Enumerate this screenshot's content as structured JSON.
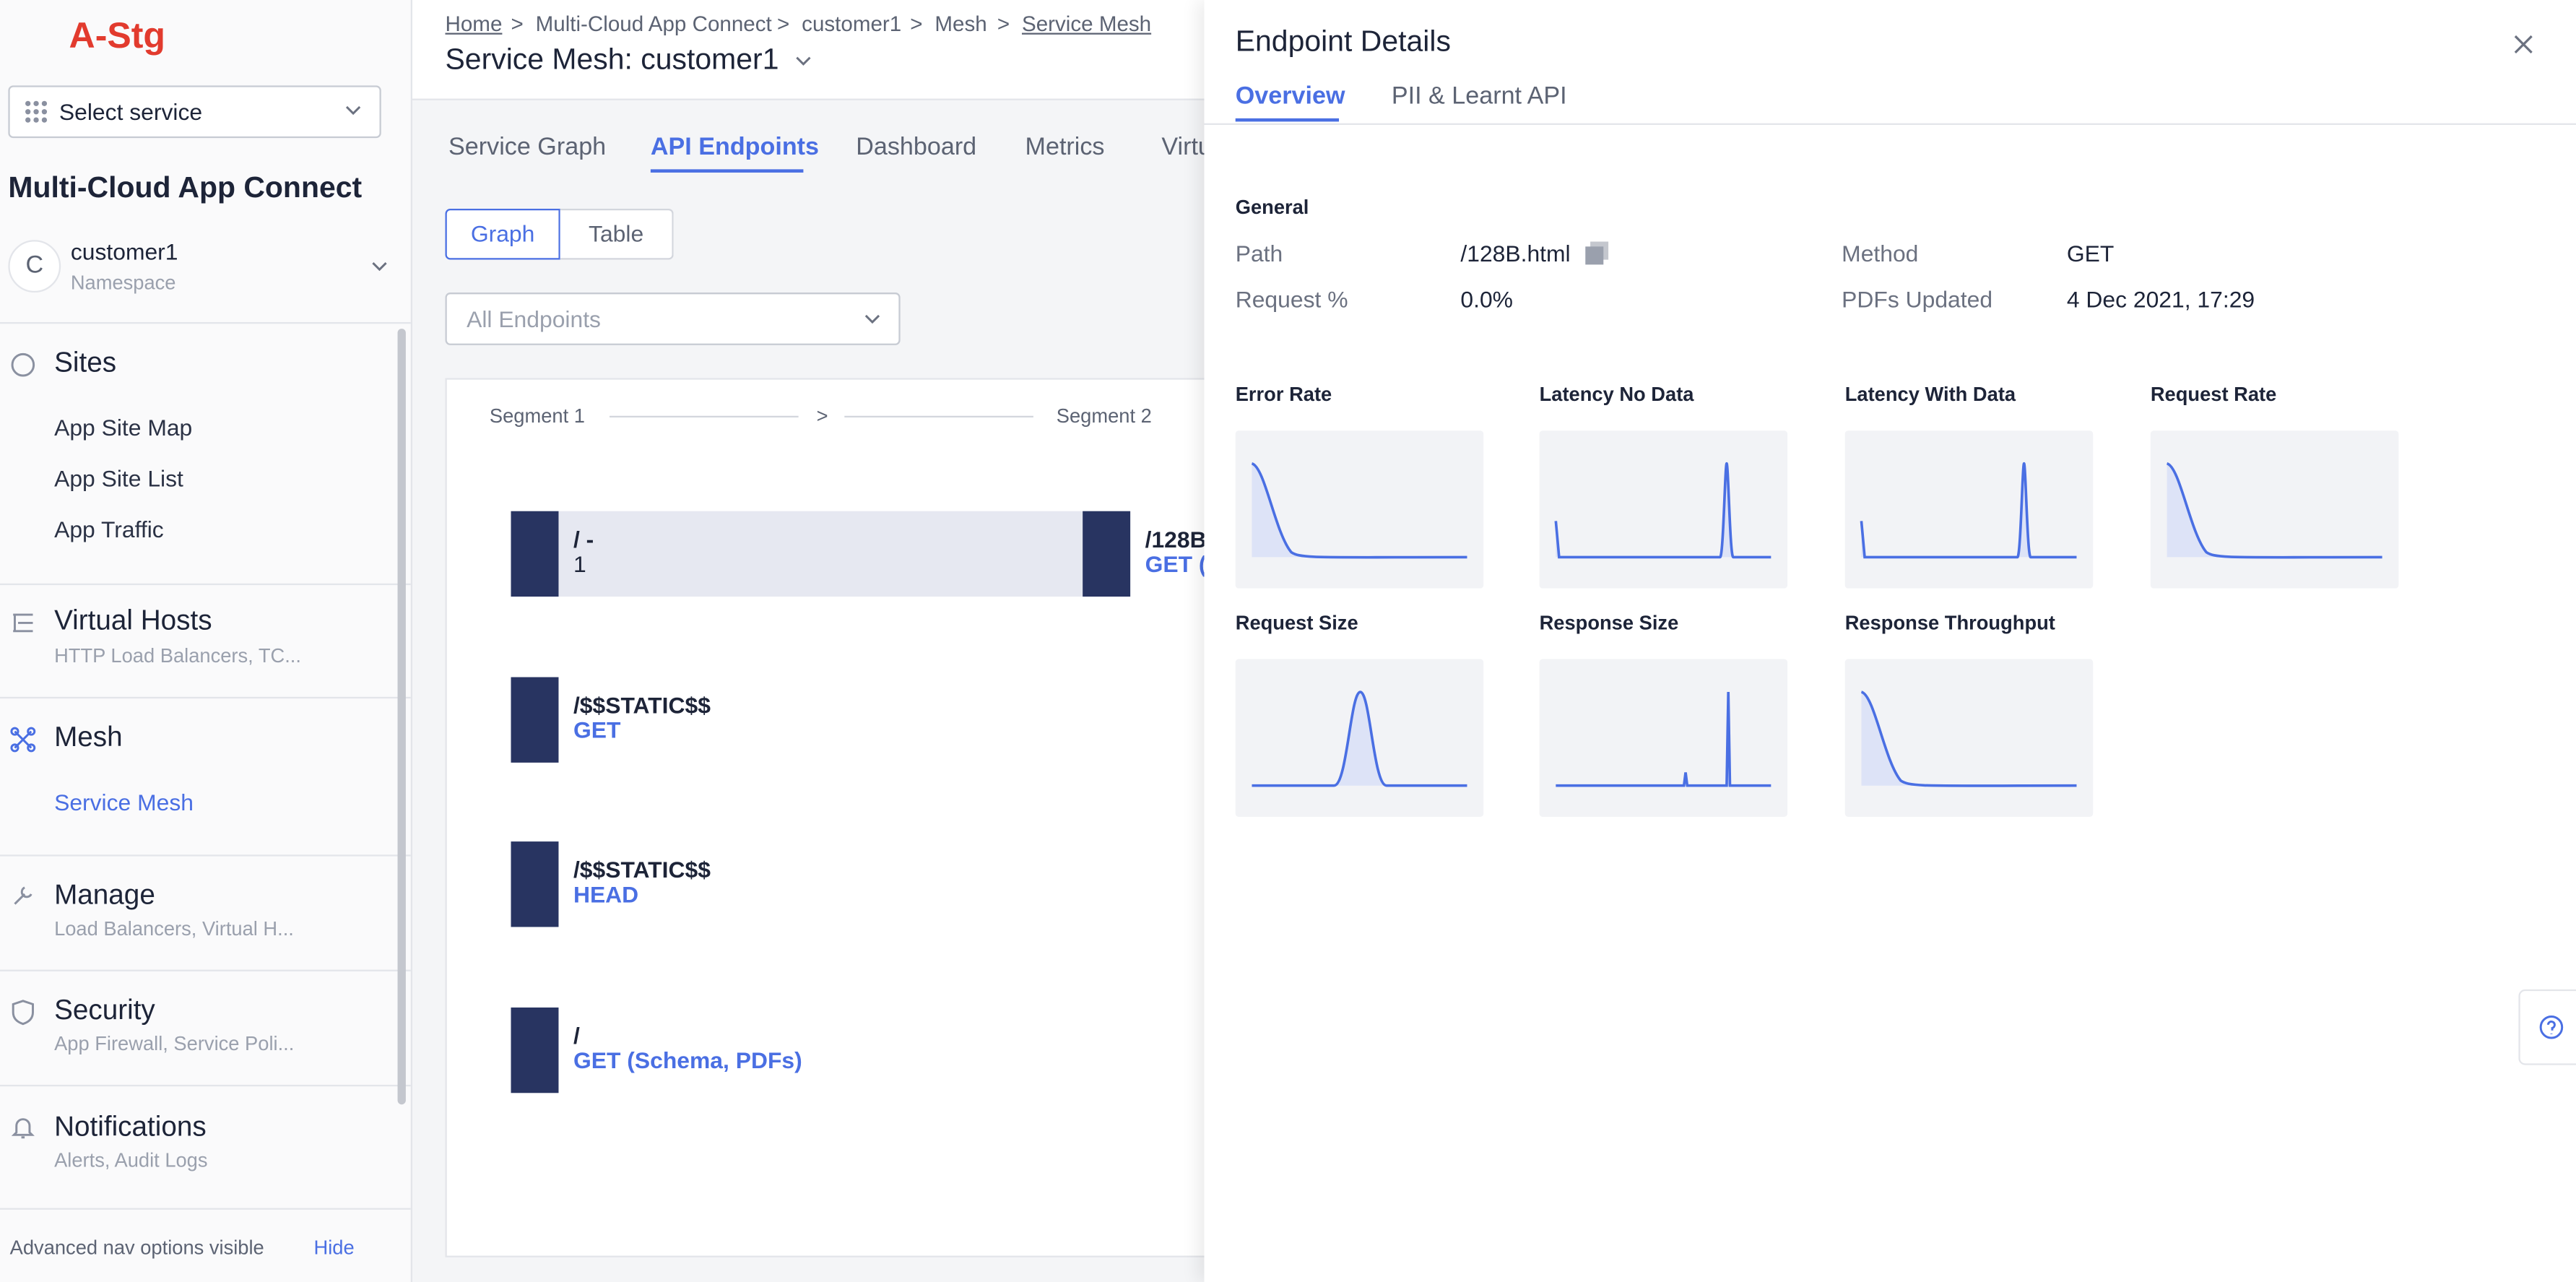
{
  "sidebar": {
    "brand": "A-Stg",
    "select_service": "Select service",
    "app_title": "Multi-Cloud App Connect",
    "namespace": {
      "initial": "C",
      "name": "customer1",
      "label": "Namespace"
    },
    "sections": [
      {
        "title": "Sites",
        "items": [
          "App Site Map",
          "App Site List",
          "App Traffic"
        ]
      },
      {
        "title": "Virtual Hosts",
        "subtitle": "HTTP Load Balancers, TC..."
      },
      {
        "title": "Mesh",
        "items": [
          "Service Mesh"
        ]
      },
      {
        "title": "Manage",
        "subtitle": "Load Balancers, Virtual H..."
      },
      {
        "title": "Security",
        "subtitle": "App Firewall, Service Poli..."
      },
      {
        "title": "Notifications",
        "subtitle": "Alerts, Audit Logs"
      }
    ],
    "footer": {
      "text": "Advanced nav options visible",
      "link": "Hide"
    }
  },
  "main": {
    "breadcrumbs": [
      "Home",
      "Multi-Cloud App Connect",
      "customer1",
      "Mesh",
      "Service Mesh"
    ],
    "title": "Service Mesh: customer1",
    "tabs": [
      "Service Graph",
      "API Endpoints",
      "Dashboard",
      "Metrics",
      "Virtu"
    ],
    "view_toggle": [
      "Graph",
      "Table"
    ],
    "filter": "All Endpoints",
    "segments": [
      "Segment 1",
      "Segment 2"
    ],
    "nodes": [
      {
        "path": "/ -",
        "detail": "1"
      },
      {
        "path": "/$$STATIC$$",
        "method": "GET"
      },
      {
        "path": "/$$STATIC$$",
        "method": "HEAD"
      },
      {
        "path": "/",
        "method": "GET (Schema, PDFs)"
      }
    ],
    "partial_node": {
      "path": "/128B",
      "method": "GET ("
    }
  },
  "panel": {
    "title": "Endpoint Details",
    "tabs": [
      "Overview",
      "PII & Learnt API"
    ],
    "general": {
      "heading": "General",
      "fields": [
        [
          "Path",
          "/128B.html"
        ],
        [
          "Request %",
          "0.0%"
        ],
        [
          "Method",
          "GET"
        ],
        [
          "PDFs Updated",
          "4 Dec 2021, 17:29"
        ]
      ]
    },
    "charts": [
      "Error Rate",
      "Latency No Data",
      "Latency With Data",
      "Request Rate",
      "Request Size",
      "Response Size",
      "Response Throughput"
    ]
  }
}
